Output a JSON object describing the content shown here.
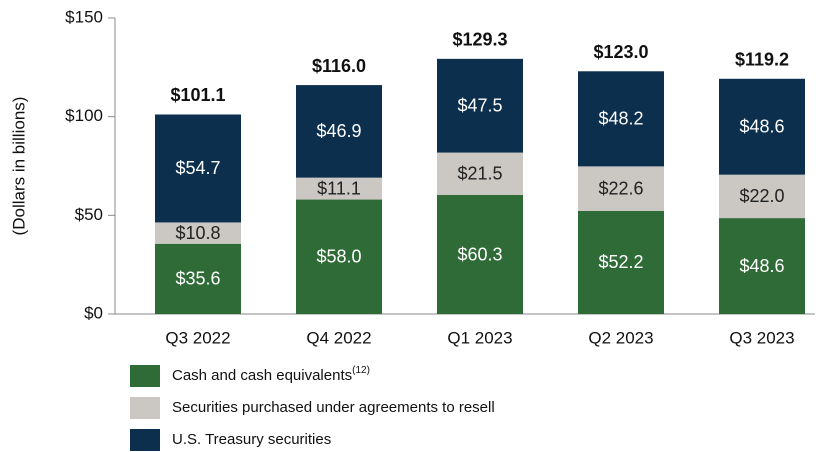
{
  "chart_data": {
    "type": "stacked_bar",
    "y_axis_label": "(Dollars in billions)",
    "categories": [
      "Q3 2022",
      "Q4 2022",
      "Q1 2023",
      "Q2 2023",
      "Q3 2023"
    ],
    "series": [
      {
        "name": "Cash and cash equivalents",
        "footnote_marker": "(12)",
        "color": "#2f6b37",
        "label_color": "#ffffff",
        "values": [
          35.6,
          58.0,
          60.3,
          52.2,
          48.6
        ],
        "value_labels": [
          "$35.6",
          "$58.0",
          "$60.3",
          "$52.2",
          "$48.6"
        ]
      },
      {
        "name": "Securities purchased under agreements to resell",
        "color": "#cbc8c3",
        "label_color": "#222222",
        "values": [
          10.8,
          11.1,
          21.5,
          22.6,
          22.0
        ],
        "value_labels": [
          "$10.8",
          "$11.1",
          "$21.5",
          "$22.6",
          "$22.0"
        ]
      },
      {
        "name": "U.S. Treasury securities",
        "color": "#0c2f4e",
        "label_color": "#ffffff",
        "values": [
          54.7,
          46.9,
          47.5,
          48.2,
          48.6
        ],
        "value_labels": [
          "$54.7",
          "$46.9",
          "$47.5",
          "$48.2",
          "$48.6"
        ]
      }
    ],
    "totals": [
      101.1,
      116.0,
      129.3,
      123.0,
      119.2
    ],
    "total_labels": [
      "$101.1",
      "$116.0",
      "$129.3",
      "$123.0",
      "$119.2"
    ],
    "ylim": [
      0,
      150
    ],
    "yticks": [
      {
        "value": 0,
        "label": "$0"
      },
      {
        "value": 50,
        "label": "$50"
      },
      {
        "value": 100,
        "label": "$100"
      },
      {
        "value": 150,
        "label": "$150"
      }
    ],
    "grid": false
  }
}
